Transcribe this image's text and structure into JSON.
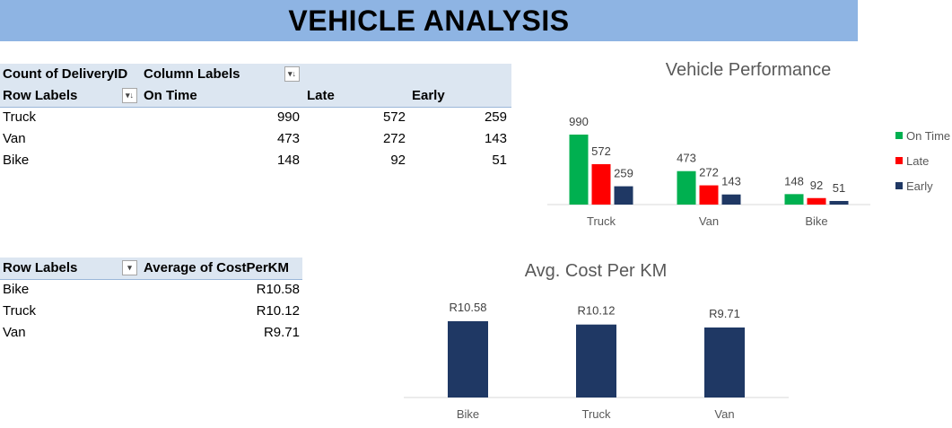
{
  "banner": {
    "title": "VEHICLE ANALYSIS"
  },
  "pivot1": {
    "value_header": "Count of DeliveryID",
    "column_labels": "Column Labels",
    "row_labels": "Row Labels",
    "columns": [
      "On Time",
      "Late",
      "Early"
    ],
    "rows": [
      {
        "label": "Truck",
        "values": [
          "990",
          "572",
          "259"
        ]
      },
      {
        "label": "Van",
        "values": [
          "473",
          "272",
          "143"
        ]
      },
      {
        "label": "Bike",
        "values": [
          "148",
          "92",
          "51"
        ]
      }
    ]
  },
  "pivot2": {
    "row_labels": "Row Labels",
    "value_header": "Average of CostPerKM",
    "rows": [
      {
        "label": "Bike",
        "value": "R10.58"
      },
      {
        "label": "Truck",
        "value": "R10.12"
      },
      {
        "label": "Van",
        "value": "R9.71"
      }
    ]
  },
  "chart_data": [
    {
      "type": "bar",
      "title": "Vehicle Performance",
      "categories": [
        "Truck",
        "Van",
        "Bike"
      ],
      "series": [
        {
          "name": "On Time",
          "values": [
            990,
            473,
            148
          ],
          "color": "#00b050"
        },
        {
          "name": "Late",
          "values": [
            572,
            272,
            92
          ],
          "color": "#ff0000"
        },
        {
          "name": "Early",
          "values": [
            259,
            143,
            51
          ],
          "color": "#1f3864"
        }
      ],
      "legend": "right",
      "grid": false
    },
    {
      "type": "bar",
      "title": "Avg. Cost Per KM",
      "categories": [
        "Bike",
        "Truck",
        "Van"
      ],
      "values": [
        10.58,
        10.12,
        9.71
      ],
      "labels": [
        "R10.58",
        "R10.12",
        "R9.71"
      ],
      "color": "#1f3864",
      "legend": "none",
      "grid": false
    }
  ]
}
